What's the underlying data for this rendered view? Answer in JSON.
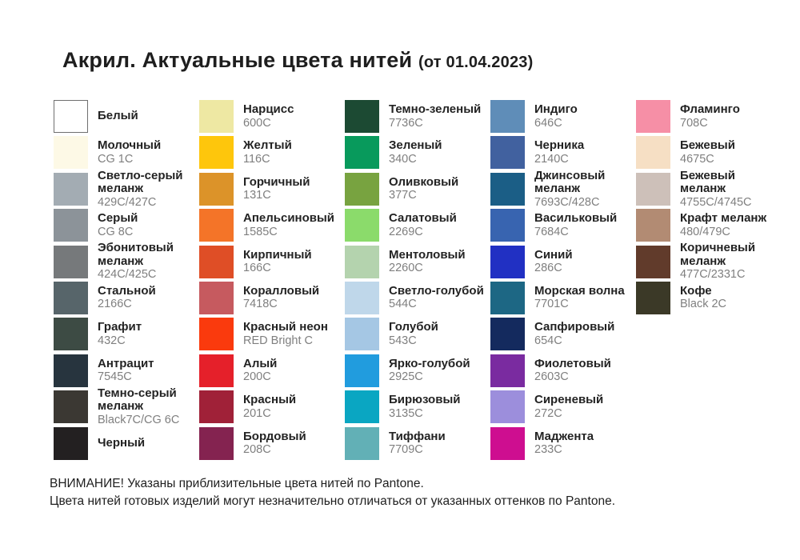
{
  "title": {
    "main": "Акрил. Актуальные цвета нитей",
    "date": "(от 01.04.2023)"
  },
  "footer": {
    "line1": "ВНИМАНИЕ! Указаны приблизительные цвета нитей по Pantone.",
    "line2": "Цвета нитей готовых изделий могут незначительно отличаться от указанных оттенков по Pantone."
  },
  "columns": [
    {
      "items": [
        {
          "name": "Белый",
          "code": "",
          "color": "#FFFFFF",
          "bordered": true
        },
        {
          "name": "Молочный",
          "code": "CG 1C",
          "color": "#FDF9E6",
          "bordered": false
        },
        {
          "name": "Светло-серый\nмеланж",
          "code": "429C/427C",
          "color": "#A3ACB3",
          "bordered": false
        },
        {
          "name": "Серый",
          "code": "CG 8C",
          "color": "#8C9399",
          "bordered": false
        },
        {
          "name": "Эбонитовый\nмеланж",
          "code": "424C/425C",
          "color": "#76797B",
          "bordered": false
        },
        {
          "name": "Стальной",
          "code": "2166C",
          "color": "#57656A",
          "bordered": false
        },
        {
          "name": "Графит",
          "code": "432C",
          "color": "#3D4B44",
          "bordered": false
        },
        {
          "name": "Антрацит",
          "code": "7545C",
          "color": "#27343E",
          "bordered": false
        },
        {
          "name": "Темно-серый\nмеланж",
          "code": "Black7C/CG 6C",
          "color": "#3B3833",
          "bordered": false
        },
        {
          "name": "Черный",
          "code": "",
          "color": "#232021",
          "bordered": false
        }
      ]
    },
    {
      "items": [
        {
          "name": "Нарцисс",
          "code": "600C",
          "color": "#EEE8A3",
          "bordered": false
        },
        {
          "name": "Желтый",
          "code": "116C",
          "color": "#FEC60C",
          "bordered": false
        },
        {
          "name": "Горчичный",
          "code": "131C",
          "color": "#DC9329",
          "bordered": false
        },
        {
          "name": "Апельсиновый",
          "code": "1585C",
          "color": "#F47428",
          "bordered": false
        },
        {
          "name": "Кирпичный",
          "code": "166C",
          "color": "#DF4E26",
          "bordered": false
        },
        {
          "name": "Коралловый",
          "code": "7418C",
          "color": "#C65A5F",
          "bordered": false
        },
        {
          "name": "Красный неон",
          "code": "RED Bright C",
          "color": "#FA3A0D",
          "bordered": false
        },
        {
          "name": "Алый",
          "code": "200C",
          "color": "#E5202A",
          "bordered": false
        },
        {
          "name": "Красный",
          "code": "201C",
          "color": "#A02138",
          "bordered": false
        },
        {
          "name": "Бордовый",
          "code": "208C",
          "color": "#842350",
          "bordered": false
        }
      ]
    },
    {
      "items": [
        {
          "name": "Темно-зеленый",
          "code": "7736C",
          "color": "#1C4A33",
          "bordered": false
        },
        {
          "name": "Зеленый",
          "code": "340C",
          "color": "#089A5C",
          "bordered": false
        },
        {
          "name": "Оливковый",
          "code": "377C",
          "color": "#78A340",
          "bordered": false
        },
        {
          "name": "Салатовый",
          "code": "2269C",
          "color": "#8BDB6B",
          "bordered": false
        },
        {
          "name": "Ментоловый",
          "code": "2260C",
          "color": "#B4D3AE",
          "bordered": false
        },
        {
          "name": "Светло-голубой",
          "code": "544C",
          "color": "#BFD7EA",
          "bordered": false
        },
        {
          "name": "Голубой",
          "code": "543C",
          "color": "#A5C7E4",
          "bordered": false
        },
        {
          "name": "Ярко-голубой",
          "code": "2925C",
          "color": "#219CDE",
          "bordered": false
        },
        {
          "name": "Бирюзовый",
          "code": "3135C",
          "color": "#0AA6C2",
          "bordered": false
        },
        {
          "name": "Тиффани",
          "code": "7709C",
          "color": "#62B0B6",
          "bordered": false
        }
      ]
    },
    {
      "items": [
        {
          "name": "Индиго",
          "code": "646C",
          "color": "#5F8DB8",
          "bordered": false
        },
        {
          "name": "Черника",
          "code": "2140C",
          "color": "#41619F",
          "bordered": false
        },
        {
          "name": "Джинсовый\nмеланж",
          "code": "7693C/428C",
          "color": "#1B5E86",
          "bordered": false
        },
        {
          "name": "Васильковый",
          "code": "7684C",
          "color": "#3864B0",
          "bordered": false
        },
        {
          "name": "Синий",
          "code": "286C",
          "color": "#2130C3",
          "bordered": false
        },
        {
          "name": "Морская волна",
          "code": "7701C",
          "color": "#1D6784",
          "bordered": false
        },
        {
          "name": "Сапфировый",
          "code": "654C",
          "color": "#142A5E",
          "bordered": false
        },
        {
          "name": "Фиолетовый",
          "code": "2603C",
          "color": "#7A2BA0",
          "bordered": false
        },
        {
          "name": "Сиреневый",
          "code": "272C",
          "color": "#9C8EDC",
          "bordered": false
        },
        {
          "name": "Маджента",
          "code": "233C",
          "color": "#CE0E90",
          "bordered": false
        }
      ]
    },
    {
      "items": [
        {
          "name": "Фламинго",
          "code": "708C",
          "color": "#F68FA6",
          "bordered": false
        },
        {
          "name": "Бежевый",
          "code": "4675C",
          "color": "#F6DFC4",
          "bordered": false
        },
        {
          "name": "Бежевый\nмеланж",
          "code": "4755C/4745C",
          "color": "#CDC0B9",
          "bordered": false
        },
        {
          "name": "Крафт меланж",
          "code": "480/479C",
          "color": "#B28B73",
          "bordered": false
        },
        {
          "name": "Коричневый\nмеланж",
          "code": "477C/2331C",
          "color": "#613B2B",
          "bordered": false
        },
        {
          "name": "Кофе",
          "code": "Black 2C",
          "color": "#3B3927",
          "bordered": false
        }
      ]
    }
  ]
}
